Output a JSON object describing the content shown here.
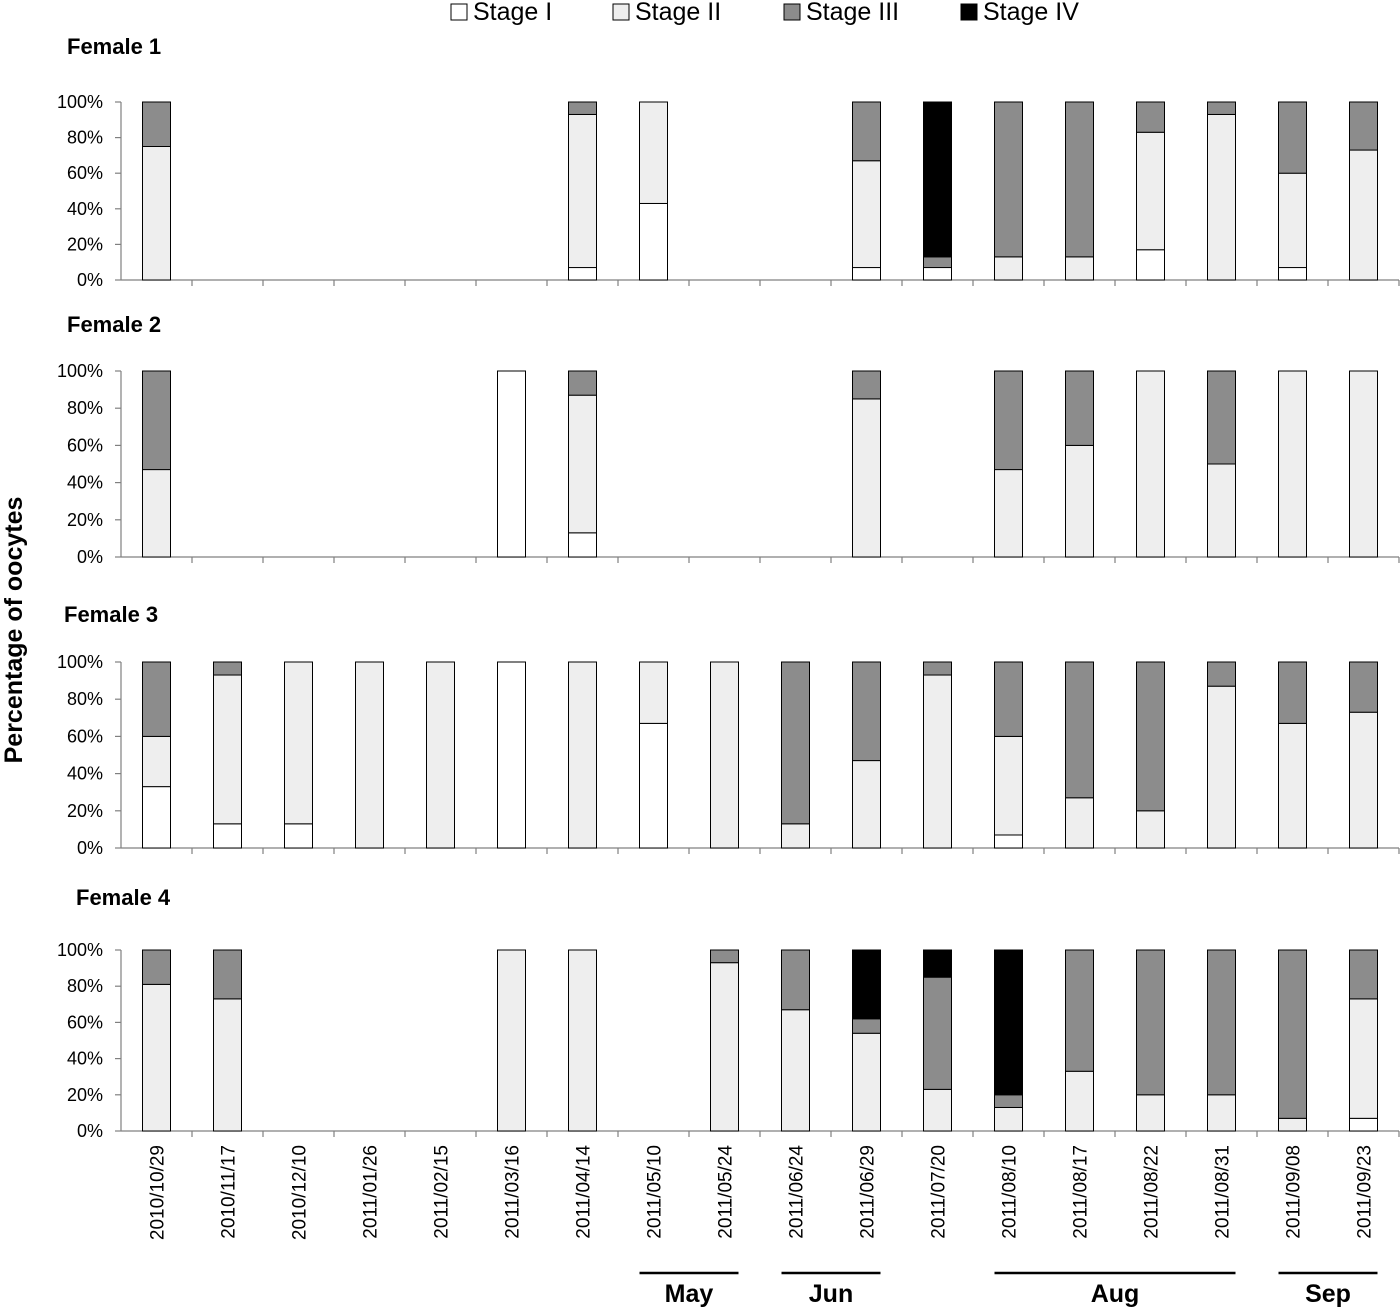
{
  "chart_data": {
    "type": "bar",
    "stacked": true,
    "ylabel": "Percentage of oocytes",
    "ylim": [
      0,
      100
    ],
    "yticks": [
      "0%",
      "20%",
      "40%",
      "60%",
      "80%",
      "100%"
    ],
    "legend_position": "top",
    "colors": {
      "Stage I": "#ffffff",
      "Stage II": "#eeeeee",
      "Stage III": "#8c8c8c",
      "Stage IV": "#000000"
    },
    "stages": [
      "Stage I",
      "Stage II",
      "Stage III",
      "Stage IV"
    ],
    "categories": [
      "2010/10/29",
      "2010/11/17",
      "2010/12/10",
      "2011/01/26",
      "2011/02/15",
      "2011/03/16",
      "2011/04/14",
      "2011/05/10",
      "2011/05/24",
      "2011/06/24",
      "2011/06/29",
      "2011/07/20",
      "2011/08/10",
      "2011/08/17",
      "2011/08/22",
      "2011/08/31",
      "2011/09/08",
      "2011/09/23"
    ],
    "months": [
      {
        "label": "May",
        "from": 7,
        "to": 8
      },
      {
        "label": "Jun",
        "from": 9,
        "to": 10
      },
      {
        "label": "Aug",
        "from": 12,
        "to": 15
      },
      {
        "label": "Sep",
        "from": 16,
        "to": 17
      }
    ],
    "panels": [
      {
        "title": "Female 1",
        "series": [
          {
            "name": "Stage I",
            "values": [
              0,
              null,
              null,
              null,
              null,
              null,
              7,
              43,
              null,
              null,
              7,
              7,
              0,
              0,
              17,
              0,
              7,
              0
            ]
          },
          {
            "name": "Stage II",
            "values": [
              75,
              null,
              null,
              null,
              null,
              null,
              86,
              57,
              null,
              null,
              60,
              0,
              13,
              13,
              66,
              93,
              53,
              73
            ]
          },
          {
            "name": "Stage III",
            "values": [
              25,
              null,
              null,
              null,
              null,
              null,
              7,
              0,
              null,
              null,
              33,
              6,
              87,
              87,
              17,
              7,
              40,
              27
            ]
          },
          {
            "name": "Stage IV",
            "values": [
              0,
              null,
              null,
              null,
              null,
              null,
              0,
              0,
              null,
              null,
              0,
              87,
              0,
              0,
              0,
              0,
              0,
              0
            ]
          }
        ]
      },
      {
        "title": "Female 2",
        "series": [
          {
            "name": "Stage I",
            "values": [
              0,
              null,
              null,
              null,
              null,
              100,
              13,
              null,
              null,
              null,
              0,
              null,
              0,
              0,
              0,
              0,
              0,
              0
            ]
          },
          {
            "name": "Stage II",
            "values": [
              47,
              null,
              null,
              null,
              null,
              0,
              74,
              null,
              null,
              null,
              85,
              null,
              47,
              60,
              100,
              50,
              100,
              100
            ]
          },
          {
            "name": "Stage III",
            "values": [
              53,
              null,
              null,
              null,
              null,
              0,
              13,
              null,
              null,
              null,
              15,
              null,
              53,
              40,
              0,
              50,
              0,
              0
            ]
          },
          {
            "name": "Stage IV",
            "values": [
              0,
              null,
              null,
              null,
              null,
              0,
              0,
              null,
              null,
              null,
              0,
              null,
              0,
              0,
              0,
              0,
              0,
              0
            ]
          }
        ]
      },
      {
        "title": "Female 3",
        "series": [
          {
            "name": "Stage I",
            "values": [
              33,
              13,
              13,
              0,
              0,
              100,
              0,
              67,
              0,
              0,
              0,
              0,
              7,
              0,
              0,
              0,
              0,
              0
            ]
          },
          {
            "name": "Stage II",
            "values": [
              27,
              80,
              87,
              100,
              100,
              0,
              100,
              33,
              100,
              13,
              47,
              93,
              53,
              27,
              20,
              87,
              67,
              73
            ]
          },
          {
            "name": "Stage III",
            "values": [
              40,
              7,
              0,
              0,
              0,
              0,
              0,
              0,
              0,
              87,
              53,
              7,
              40,
              73,
              80,
              13,
              33,
              27
            ]
          },
          {
            "name": "Stage IV",
            "values": [
              0,
              0,
              0,
              0,
              0,
              0,
              0,
              0,
              0,
              0,
              0,
              0,
              0,
              0,
              0,
              0,
              0,
              0
            ]
          }
        ]
      },
      {
        "title": "Female 4",
        "series": [
          {
            "name": "Stage I",
            "values": [
              0,
              0,
              null,
              null,
              null,
              0,
              0,
              null,
              0,
              0,
              0,
              0,
              0,
              0,
              0,
              0,
              0,
              7
            ]
          },
          {
            "name": "Stage II",
            "values": [
              81,
              73,
              null,
              null,
              null,
              100,
              100,
              null,
              93,
              67,
              54,
              23,
              13,
              33,
              20,
              20,
              7,
              66
            ]
          },
          {
            "name": "Stage III",
            "values": [
              19,
              27,
              null,
              null,
              null,
              0,
              0,
              null,
              7,
              33,
              8,
              62,
              7,
              67,
              80,
              80,
              93,
              27
            ]
          },
          {
            "name": "Stage IV",
            "values": [
              0,
              0,
              null,
              null,
              null,
              0,
              0,
              null,
              0,
              0,
              38,
              15,
              80,
              0,
              0,
              0,
              0,
              0
            ]
          }
        ]
      }
    ]
  }
}
